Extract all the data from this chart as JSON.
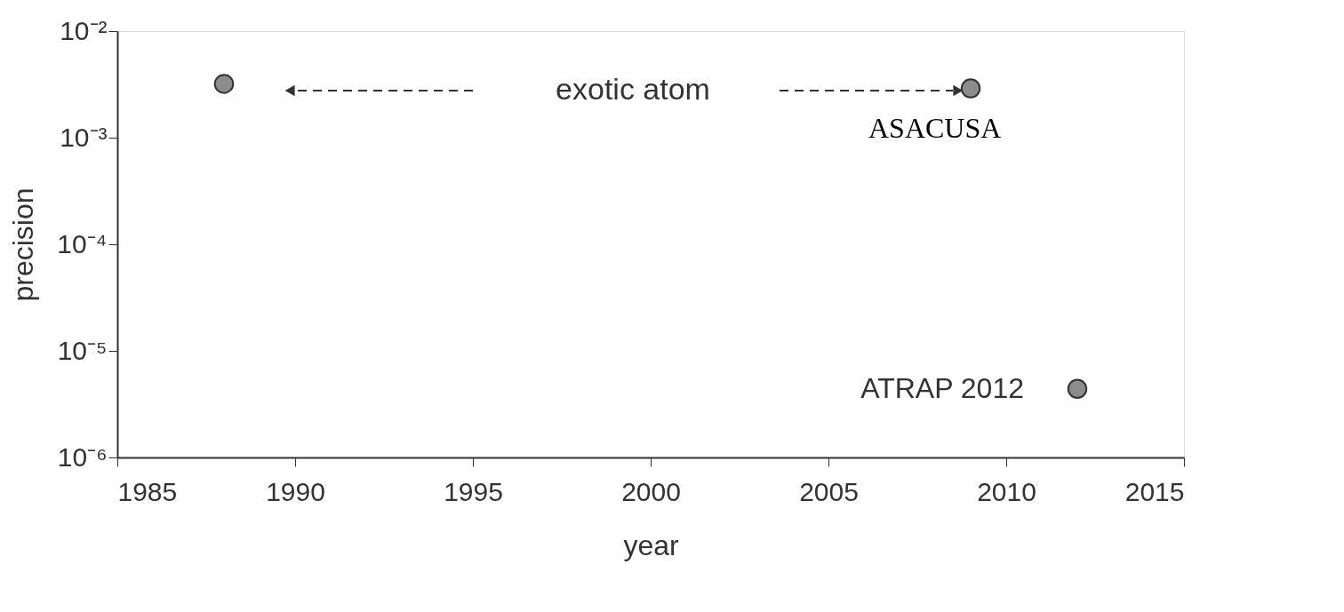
{
  "chart_data": {
    "type": "scatter",
    "xlabel": "year",
    "ylabel": "precision",
    "x": [
      1988,
      2009,
      2012
    ],
    "series": [
      {
        "color": "#8c8c8c",
        "values": [
          0.0032,
          0.0029,
          4.4e-06
        ]
      }
    ],
    "marker": "circle",
    "log": "y",
    "grid": false,
    "xlim": [
      1985,
      2015
    ],
    "xticks": [
      1985,
      1990,
      1995,
      2000,
      2005,
      2010,
      2015
    ],
    "ylim": [
      1e-06,
      0.01
    ],
    "yticks": [
      {
        "value": 1e-06,
        "label": "10⁻⁶"
      },
      {
        "value": 1e-05,
        "label": "10⁻⁵"
      },
      {
        "value": 0.0001,
        "label": "10⁻⁴"
      },
      {
        "value": 0.001,
        "label": "10⁻³"
      },
      {
        "value": 0.01,
        "label": "10⁻²"
      }
    ],
    "annotations": [
      "exotic atom",
      {
        "text": "ASACUSA",
        "x": 2009,
        "y": 0.0029
      },
      {
        "text": "ATRAP 2012",
        "x": 2012,
        "y": 4.4e-06
      }
    ]
  }
}
